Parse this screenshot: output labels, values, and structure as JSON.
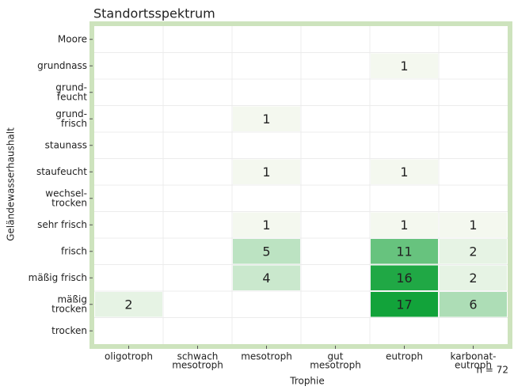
{
  "chart_data": {
    "type": "heatmap",
    "title": "Standortsspektrum",
    "x_label": "Trophie",
    "y_label": "Geländewasserhaushalt",
    "annotation": "n = 72",
    "columns": [
      [
        "oligotroph"
      ],
      [
        "schwach",
        "mesotroph"
      ],
      [
        "mesotroph"
      ],
      [
        "gut",
        "mesotroph"
      ],
      [
        "eutroph"
      ],
      [
        "karbonat-",
        "eutroph"
      ]
    ],
    "rows": [
      [
        "Moore"
      ],
      [
        "grundnass"
      ],
      [
        "grund-",
        "feucht"
      ],
      [
        "grund-",
        "frisch"
      ],
      [
        "staunass"
      ],
      [
        "staufeucht"
      ],
      [
        "wechsel-",
        "trocken"
      ],
      [
        "sehr frisch"
      ],
      [
        "frisch"
      ],
      [
        "mäßig frisch"
      ],
      [
        "mäßig",
        "trocken"
      ],
      [
        "trocken"
      ]
    ],
    "values": [
      [
        null,
        null,
        null,
        null,
        null,
        null
      ],
      [
        null,
        null,
        null,
        null,
        1,
        null
      ],
      [
        null,
        null,
        null,
        null,
        null,
        null
      ],
      [
        null,
        null,
        1,
        null,
        null,
        null
      ],
      [
        null,
        null,
        null,
        null,
        null,
        null
      ],
      [
        null,
        null,
        1,
        null,
        1,
        null
      ],
      [
        null,
        null,
        null,
        null,
        null,
        null
      ],
      [
        null,
        null,
        1,
        null,
        1,
        1
      ],
      [
        null,
        null,
        5,
        null,
        11,
        2
      ],
      [
        null,
        null,
        4,
        null,
        16,
        2
      ],
      [
        2,
        null,
        null,
        null,
        17,
        6
      ],
      [
        null,
        null,
        null,
        null,
        null,
        null
      ]
    ],
    "color_scale": [
      "#f4f8ef",
      "#12a33a"
    ],
    "border_color": "#cde3bd"
  }
}
